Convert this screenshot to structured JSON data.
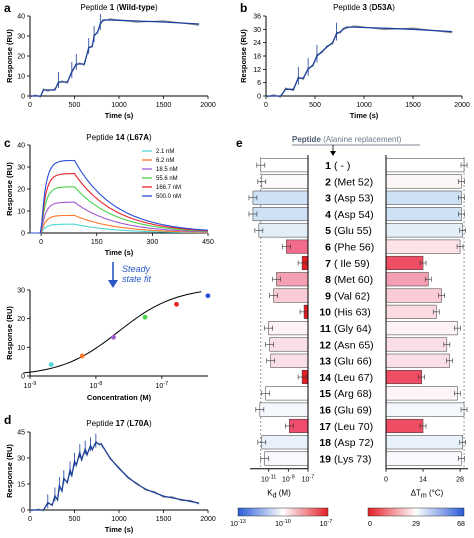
{
  "panels": {
    "a": {
      "letter": "a",
      "title": "Peptide 1 (Wild-type)",
      "xlabel": "Time (s)",
      "ylabel": "Response (RU)"
    },
    "b": {
      "letter": "b",
      "title": "Peptide 3 (D53A)",
      "xlabel": "Time (s)",
      "ylabel": "Response (RU)"
    },
    "c": {
      "letter": "c",
      "title": "Peptide 14 (L67A)",
      "xlabel": "Time (s)",
      "ylabel": "Response (RU)"
    },
    "c2": {
      "xlabel": "Concentration (M)",
      "ylabel": "Response (RU)",
      "annotation": "Steady state fit"
    },
    "d": {
      "letter": "d",
      "title": "Peptide 17 (L70A)",
      "xlabel": "Time (s)",
      "ylabel": "Response (RU)"
    },
    "e": {
      "letter": "e",
      "header_bold": "Peptide",
      "header_rest": "(Alanine replacement)",
      "kd_label": "K_d (M)",
      "dtm_label": "ΔT_m (°C)"
    }
  },
  "chart_data": [
    {
      "id": "a",
      "type": "line",
      "title": "Peptide 1 (Wild-type)",
      "xlabel": "Time (s)",
      "ylabel": "Response (RU)",
      "xlim": [
        0,
        2000
      ],
      "ylim": [
        0,
        40
      ],
      "xticks": [
        0,
        500,
        1000,
        1500,
        2000
      ],
      "yticks": [
        0,
        10,
        20,
        30,
        40
      ],
      "x": [
        0,
        60,
        120,
        150,
        200,
        280,
        320,
        360,
        420,
        470,
        520,
        560,
        610,
        660,
        700,
        720,
        760,
        790,
        820,
        900,
        1200,
        1500,
        1900
      ],
      "y": [
        0,
        0,
        0,
        3,
        3,
        3,
        7,
        7,
        7,
        12,
        16,
        16,
        16,
        24,
        25,
        30,
        32,
        36,
        38,
        38,
        37.5,
        37,
        36
      ]
    },
    {
      "id": "b",
      "type": "line",
      "title": "Peptide 3 (D53A)",
      "xlabel": "Time (s)",
      "ylabel": "Response (RU)",
      "xlim": [
        0,
        2000
      ],
      "ylim": [
        0,
        36
      ],
      "xticks": [
        0,
        500,
        1000,
        1500,
        2000
      ],
      "yticks": [
        0,
        6,
        12,
        18,
        24,
        30,
        36
      ],
      "x": [
        0,
        80,
        150,
        200,
        280,
        330,
        380,
        430,
        480,
        520,
        570,
        620,
        680,
        720,
        760,
        790,
        820,
        900,
        1200,
        1500,
        1900
      ],
      "y": [
        0,
        0,
        0,
        3,
        3,
        8,
        8,
        12,
        14,
        18,
        20,
        22,
        24,
        28,
        29,
        30,
        31,
        31,
        30.5,
        30,
        29
      ]
    },
    {
      "id": "c",
      "type": "line",
      "title": "Peptide 14 (L67A)",
      "xlabel": "Time (s)",
      "ylabel": "Response (RU)",
      "xlim": [
        -30,
        450
      ],
      "ylim": [
        0,
        40
      ],
      "xticks": [
        0,
        150,
        300,
        450
      ],
      "yticks": [
        0,
        10,
        20,
        30,
        40
      ],
      "series": [
        {
          "name": "2.1 nM",
          "color": "#4fd5d5",
          "plateau": 4
        },
        {
          "name": "6.2 nM",
          "color": "#ff7a2a",
          "plateau": 8
        },
        {
          "name": "18.5 nM",
          "color": "#a15bd4",
          "plateau": 14
        },
        {
          "name": "55.6 nM",
          "color": "#49d24a",
          "plateau": 21
        },
        {
          "name": "166.7 nM",
          "color": "#e8232a",
          "plateau": 27
        },
        {
          "name": "500.0 nM",
          "color": "#2a4cd8",
          "plateau": 33
        }
      ]
    },
    {
      "id": "c2",
      "type": "scatter",
      "xlabel": "Concentration (M)",
      "ylabel": "Response (RU)",
      "xlog": true,
      "xlim_log10": [
        -9,
        -6.3
      ],
      "xtick_exponents": [
        -9,
        -8,
        -7
      ],
      "ylim": [
        0,
        30
      ],
      "yticks": [
        0,
        10,
        20,
        30
      ],
      "points": [
        {
          "x": 2.1e-09,
          "y": 4,
          "color": "#4fd5d5"
        },
        {
          "x": 6.2e-09,
          "y": 7,
          "color": "#ff7a2a"
        },
        {
          "x": 1.85e-08,
          "y": 13.5,
          "color": "#a15bd4"
        },
        {
          "x": 5.56e-08,
          "y": 20.5,
          "color": "#49d24a"
        },
        {
          "x": 1.667e-07,
          "y": 25,
          "color": "#e8232a"
        },
        {
          "x": 5e-07,
          "y": 28,
          "color": "#2a4cd8"
        }
      ]
    },
    {
      "id": "d",
      "type": "line",
      "title": "Peptide 17 (L70A)",
      "xlabel": "Time (s)",
      "ylabel": "Response (RU)",
      "xlim": [
        0,
        2000
      ],
      "ylim": [
        0,
        45
      ],
      "xticks": [
        0,
        500,
        1000,
        1500,
        2000
      ],
      "yticks": [
        0,
        15,
        30,
        45
      ],
      "x": [
        0,
        100,
        150,
        200,
        250,
        280,
        310,
        330,
        360,
        380,
        420,
        450,
        470,
        500,
        520,
        560,
        580,
        620,
        640,
        680,
        700,
        740,
        780,
        800,
        900,
        1000,
        1100,
        1200,
        1300,
        1400,
        1500,
        1600,
        1700,
        1800,
        1900
      ],
      "y": [
        0,
        0,
        0,
        4,
        3,
        8,
        6,
        14,
        11,
        18,
        16,
        23,
        20,
        28,
        26,
        33,
        29,
        35,
        32,
        37,
        35,
        39,
        38,
        38,
        30,
        24,
        19,
        15,
        12,
        10,
        8,
        7,
        6,
        5,
        4
      ]
    },
    {
      "id": "e",
      "type": "bar",
      "header": "Peptide (Alanine replacement)",
      "kd_xlabel": "K_d (M)",
      "kd_ticks": [
        "10",
        "10",
        "10"
      ],
      "kd_tick_exponents": [
        "-11",
        "-9",
        "-7"
      ],
      "dtm_xlabel": "ΔT_m (°C)",
      "dtm_ticks": [
        "0",
        "14",
        "28"
      ],
      "kd_colorbar": {
        "min": "10",
        "min_exp": "-13",
        "mid": "10",
        "mid_exp": "-10",
        "max": "10",
        "max_exp": "-7",
        "colors": [
          "#2a5bd7",
          "#ffffff",
          "#e51d25"
        ]
      },
      "dtm_colorbar": {
        "min": "0",
        "mid": "29",
        "max": "68",
        "colors": [
          "#e51d25",
          "#ffffff",
          "#2a5bd7"
        ]
      },
      "rows": [
        {
          "num": "1",
          "label": "(   -   )",
          "log_kd": -11.8,
          "kd_color": "#ffffff",
          "dtm": 29.5,
          "dtm_color": "#ffffff"
        },
        {
          "num": "2",
          "label": "(Met 52)",
          "log_kd": -11.7,
          "kd_color": "#fdfbfc",
          "dtm": 28.5,
          "dtm_color": "#fdf6f7"
        },
        {
          "num": "3",
          "label": "(Asp 53)",
          "log_kd": -12.6,
          "kd_color": "#cfe1f4",
          "dtm": 28.5,
          "dtm_color": "#cfe1f4"
        },
        {
          "num": "4",
          "label": "(Asp 54)",
          "log_kd": -12.6,
          "kd_color": "#cfe1f4",
          "dtm": 28.5,
          "dtm_color": "#cfe1f4"
        },
        {
          "num": "5",
          "label": "(Glu 55)",
          "log_kd": -12.0,
          "kd_color": "#e4eef9",
          "dtm": 29,
          "dtm_color": "#e4eef9"
        },
        {
          "num": "6",
          "label": "(Phe 56)",
          "log_kd": -9.2,
          "kd_color": "#f26b8a",
          "dtm": 28,
          "dtm_color": "#fbe3e8"
        },
        {
          "num": "7",
          "label": "( Ile 59)",
          "log_kd": -7.6,
          "kd_color": "#e51d25",
          "dtm": 14,
          "dtm_color": "#ee4d63"
        },
        {
          "num": "8",
          "label": "(Met 60)",
          "log_kd": -10.2,
          "kd_color": "#f4a0b4",
          "dtm": 16,
          "dtm_color": "#f4a0b4"
        },
        {
          "num": "9",
          "label": "(Val 62)",
          "log_kd": -10.5,
          "kd_color": "#f9ccd6",
          "dtm": 21,
          "dtm_color": "#f9ccd6"
        },
        {
          "num": "10",
          "label": "(His 63)",
          "log_kd": -7.4,
          "kd_color": "#e51d25",
          "dtm": 19,
          "dtm_color": "#fbdae1"
        },
        {
          "num": "11",
          "label": "(Gly 64)",
          "log_kd": -11.0,
          "kd_color": "#fdf2f5",
          "dtm": 27,
          "dtm_color": "#fdf2f5"
        },
        {
          "num": "12",
          "label": "(Asn 65)",
          "log_kd": -10.9,
          "kd_color": "#fbdfe6",
          "dtm": 23,
          "dtm_color": "#fbdfe6"
        },
        {
          "num": "13",
          "label": "(Glu 66)",
          "log_kd": -10.8,
          "kd_color": "#fbdfe6",
          "dtm": 24,
          "dtm_color": "#fbdfe6"
        },
        {
          "num": "14",
          "label": "(Leu 67)",
          "log_kd": -7.6,
          "kd_color": "#e51d25",
          "dtm": 13.5,
          "dtm_color": "#ee4d63"
        },
        {
          "num": "15",
          "label": "(Arg 68)",
          "log_kd": -11.3,
          "kd_color": "#ffffff",
          "dtm": 27,
          "dtm_color": "#fdf4f6"
        },
        {
          "num": "16",
          "label": "(Glu 69)",
          "log_kd": -11.9,
          "kd_color": "#f4f8fc",
          "dtm": 29.5,
          "dtm_color": "#f4f8fc"
        },
        {
          "num": "17",
          "label": "(Leu 70)",
          "log_kd": -8.9,
          "kd_color": "#ee4d6e",
          "dtm": 14,
          "dtm_color": "#ee4d63"
        },
        {
          "num": "18",
          "label": "(Asp 72)",
          "log_kd": -11.7,
          "kd_color": "#e9f1fa",
          "dtm": 29,
          "dtm_color": "#e9f1fa"
        },
        {
          "num": "19",
          "label": "(Lys 73)",
          "log_kd": -11.4,
          "kd_color": "#f7f9fc",
          "dtm": 28.5,
          "dtm_color": "#f7f9fc"
        }
      ]
    }
  ]
}
